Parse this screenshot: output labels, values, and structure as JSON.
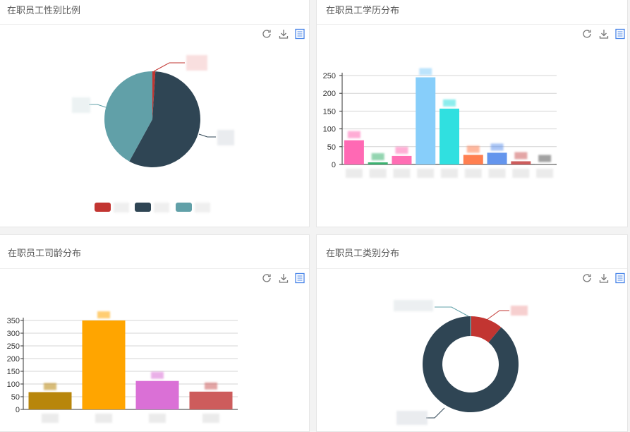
{
  "panels": [
    {
      "title": "在职员工性别比例"
    },
    {
      "title": "在职员工学历分布"
    },
    {
      "title": "在职员工司龄分布"
    },
    {
      "title": "在职员工类别分布"
    }
  ],
  "toolbox": {
    "refresh_icon": "refresh-icon",
    "download_icon": "download-icon",
    "dataview_icon": "data-view-icon",
    "icon_color": "#777777",
    "dataview_color": "#4a86e8"
  },
  "chart_data": [
    {
      "type": "pie",
      "title": "",
      "slices": [
        {
          "value": 1,
          "color": "#c23531"
        },
        {
          "value": 57,
          "color": "#2f4554"
        },
        {
          "value": 42,
          "color": "#61a0a8"
        }
      ],
      "legend": "bottom"
    },
    {
      "type": "bar",
      "title": "",
      "ylim": [
        0,
        250
      ],
      "yticks": [
        "0",
        "50",
        "100",
        "150",
        "200",
        "250"
      ],
      "values": [
        68,
        6,
        24,
        245,
        157,
        27,
        33,
        9,
        1
      ],
      "colors": [
        "#ff69b4",
        "#3cb371",
        "#ff6eb4",
        "#87cefa",
        "#30e0e0",
        "#ff7f50",
        "#6495ed",
        "#cd5c5c",
        "#555555"
      ],
      "grid": true
    },
    {
      "type": "bar",
      "title": "",
      "ylim": [
        0,
        350
      ],
      "yticks": [
        "0",
        "50",
        "100",
        "150",
        "200",
        "250",
        "300",
        "350"
      ],
      "values": [
        68,
        350,
        112,
        70
      ],
      "colors": [
        "#b8860b",
        "#ffa500",
        "#da70d6",
        "#cd5c5c"
      ],
      "grid": true
    },
    {
      "type": "pie",
      "title": "",
      "donut": true,
      "slices": [
        {
          "value": 11,
          "color": "#c23531"
        },
        {
          "value": 89,
          "color": "#2f4554"
        }
      ],
      "separator_color": "#61a0a8"
    }
  ]
}
